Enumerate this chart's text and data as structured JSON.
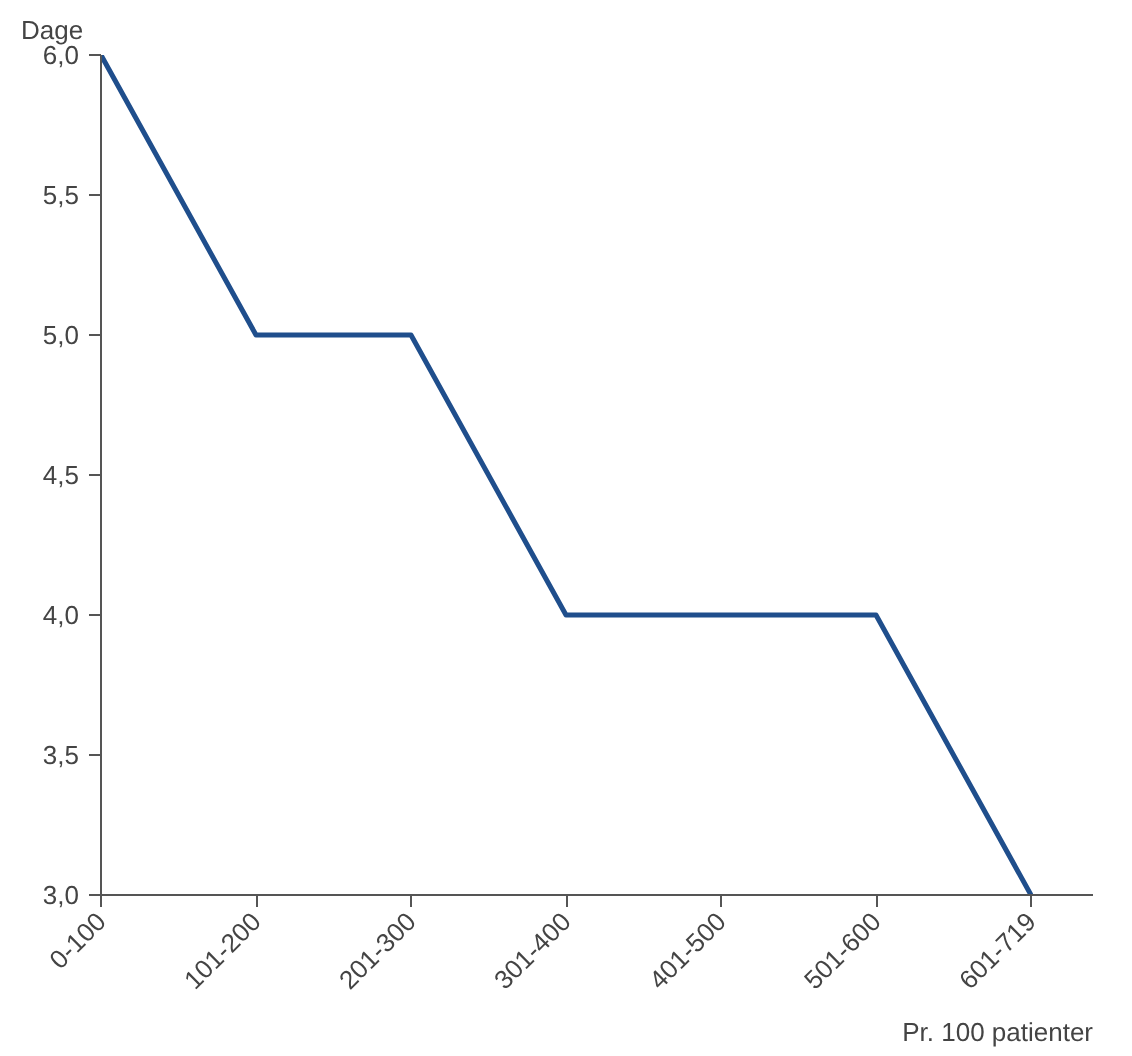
{
  "chart_data": {
    "type": "line",
    "xlabel": "Pr. 100 patienter",
    "ylabel": "Dage",
    "categories": [
      "0-100",
      "101-200",
      "201-300",
      "301-400",
      "401-500",
      "501-600",
      "601-719"
    ],
    "series": [
      {
        "color": "#1f4e8c",
        "values": [
          6,
          5,
          5,
          4,
          4,
          4,
          3
        ]
      }
    ],
    "ylim": [
      3,
      6
    ],
    "yticks": [
      {
        "value": 3,
        "label": "3,0"
      },
      {
        "value": 3.5,
        "label": "3,5"
      },
      {
        "value": 4,
        "label": "4,0"
      },
      {
        "value": 4.5,
        "label": "4,5"
      },
      {
        "value": 5,
        "label": "5,0"
      },
      {
        "value": 5.5,
        "label": "5,5"
      },
      {
        "value": 6,
        "label": "6,0"
      }
    ],
    "grid": false,
    "marker": "none",
    "line_style": "solid"
  }
}
